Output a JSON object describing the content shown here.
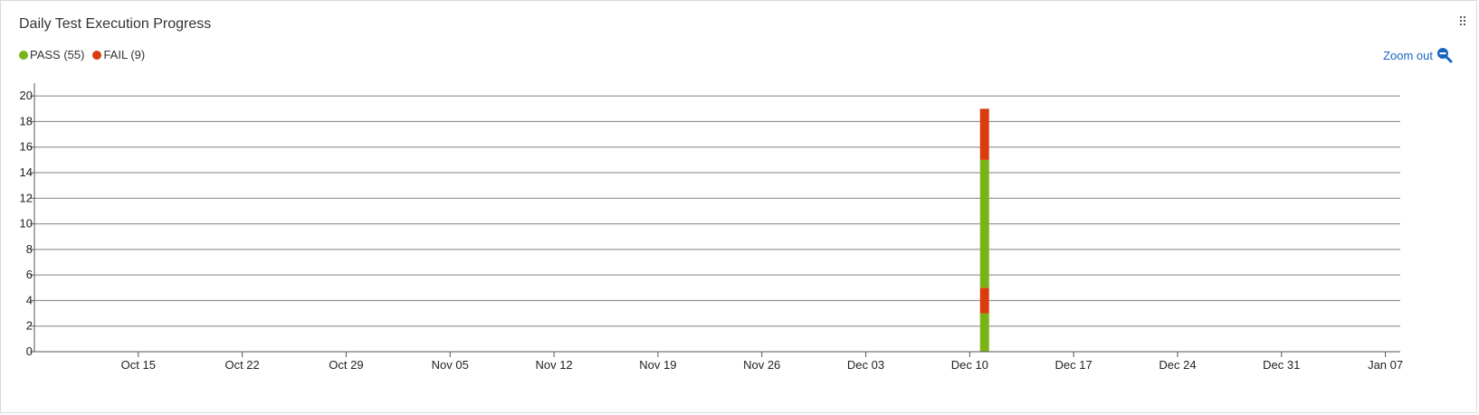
{
  "title": "Daily Test Execution Progress",
  "legend": {
    "pass_label": "PASS (55)",
    "fail_label": "FAIL (9)"
  },
  "zoom_out_label": "Zoom out",
  "colors": {
    "pass": "#7ab317",
    "fail": "#d93c0d",
    "grid": "#808080",
    "link": "#1565c0"
  },
  "icons": {
    "drag_handle": "drag-handle-icon",
    "zoom_out": "zoom-out-icon"
  },
  "chart_data": {
    "type": "bar",
    "stacked": true,
    "x_type": "date",
    "xlim": [
      "2019-10-08",
      "2020-01-08"
    ],
    "x_ticks": [
      {
        "date": "2019-10-15",
        "label": "Oct 15"
      },
      {
        "date": "2019-10-22",
        "label": "Oct 22"
      },
      {
        "date": "2019-10-29",
        "label": "Oct 29"
      },
      {
        "date": "2019-11-05",
        "label": "Nov 05"
      },
      {
        "date": "2019-11-12",
        "label": "Nov 12"
      },
      {
        "date": "2019-11-19",
        "label": "Nov 19"
      },
      {
        "date": "2019-11-26",
        "label": "Nov 26"
      },
      {
        "date": "2019-12-03",
        "label": "Dec 03"
      },
      {
        "date": "2019-12-10",
        "label": "Dec 10"
      },
      {
        "date": "2019-12-17",
        "label": "Dec 17"
      },
      {
        "date": "2019-12-24",
        "label": "Dec 24"
      },
      {
        "date": "2019-12-31",
        "label": "Dec 31"
      },
      {
        "date": "2020-01-07",
        "label": "Jan 07"
      }
    ],
    "ylim": [
      0,
      21
    ],
    "y_ticks": [
      0,
      2,
      4,
      6,
      8,
      10,
      12,
      14,
      16,
      18,
      20
    ],
    "grid": true,
    "legend_position": "top-left",
    "stacks": [
      {
        "date": "2019-12-11",
        "segments": [
          {
            "series": "PASS",
            "value": 3
          },
          {
            "series": "FAIL",
            "value": 2
          },
          {
            "series": "PASS",
            "value": 10
          },
          {
            "series": "FAIL",
            "value": 4
          }
        ]
      }
    ]
  }
}
